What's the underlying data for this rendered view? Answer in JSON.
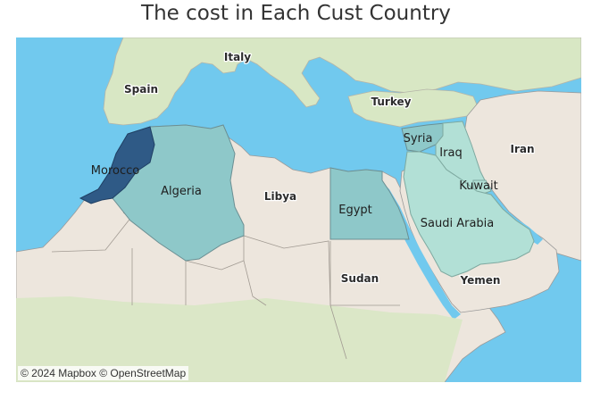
{
  "title": "The cost in Each Cust Country",
  "attribution": "© 2024 Mapbox © OpenStreetMap",
  "colors": {
    "sea": "#71c9ee",
    "land": "#ede6dd",
    "vegetation": "#d8e7c4",
    "border": "#9a9a9a",
    "scale_low": "#b2e0d6",
    "scale_high": "#2f5a86"
  },
  "base_labels": {
    "italy": "Italy",
    "spain": "Spain",
    "turkey": "Turkey",
    "iran": "Iran",
    "libya": "Libya",
    "sudan": "Sudan",
    "yemen": "Yemen"
  },
  "highlighted_countries": [
    {
      "name": "Morocco",
      "level": "darkest"
    },
    {
      "name": "Algeria",
      "level": "medium"
    },
    {
      "name": "Egypt",
      "level": "medium"
    },
    {
      "name": "Syria",
      "level": "medium"
    },
    {
      "name": "Iraq",
      "level": "light"
    },
    {
      "name": "Kuwait",
      "level": "light"
    },
    {
      "name": "Saudi Arabia",
      "level": "light"
    }
  ]
}
